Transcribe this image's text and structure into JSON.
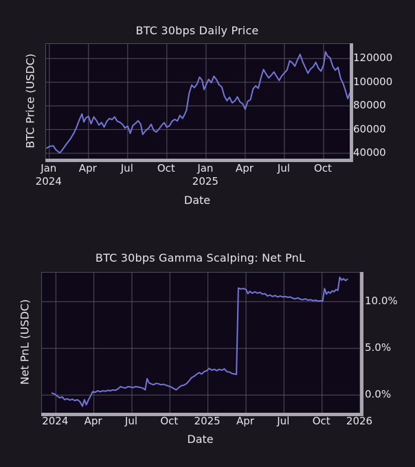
{
  "colors": {
    "page_background": "#1a171e",
    "plot_background": "#0e0818",
    "grid": "#55515e",
    "spine": "#a9a9b2",
    "line": "#7277d8",
    "text": "#e9e7ec"
  },
  "chart_data": [
    {
      "type": "line",
      "title": "BTC 30bps Daily Price",
      "xlabel": "Date",
      "ylabel": "BTC Price (USDC)",
      "x_unit": "months since 2024-01-01",
      "xlim": [
        -0.25,
        23.0
      ],
      "ylim": [
        35400,
        132300
      ],
      "grid": true,
      "legend": "none",
      "yticks": [
        {
          "value": 120000,
          "label": "120000"
        },
        {
          "value": 100000,
          "label": "100000"
        },
        {
          "value": 80000,
          "label": "80000"
        },
        {
          "value": 60000,
          "label": "60000"
        },
        {
          "value": 40000,
          "label": "40000"
        }
      ],
      "xticks": [
        {
          "pos": 0,
          "label": "Jan",
          "sublabel": "2024"
        },
        {
          "pos": 3,
          "label": "Apr"
        },
        {
          "pos": 6,
          "label": "Jul"
        },
        {
          "pos": 9,
          "label": "Oct"
        },
        {
          "pos": 12,
          "label": "Jan",
          "sublabel": "2025"
        },
        {
          "pos": 15,
          "label": "Apr"
        },
        {
          "pos": 18,
          "label": "Jul"
        },
        {
          "pos": 21,
          "label": "Oct"
        }
      ],
      "series": [
        {
          "name": "BTC price (USDC)",
          "points": [
            [
              -0.2,
              44300
            ],
            [
              0.0,
              45600
            ],
            [
              0.3,
              46300
            ],
            [
              0.5,
              42900
            ],
            [
              0.8,
              40300
            ],
            [
              1.0,
              42800
            ],
            [
              1.3,
              47600
            ],
            [
              1.6,
              51900
            ],
            [
              1.9,
              57400
            ],
            [
              2.1,
              62300
            ],
            [
              2.3,
              68200
            ],
            [
              2.5,
              73200
            ],
            [
              2.65,
              66400
            ],
            [
              2.8,
              69800
            ],
            [
              3.0,
              71200
            ],
            [
              3.2,
              64900
            ],
            [
              3.4,
              70600
            ],
            [
              3.6,
              67800
            ],
            [
              3.8,
              63700
            ],
            [
              4.0,
              65900
            ],
            [
              4.2,
              62100
            ],
            [
              4.4,
              66900
            ],
            [
              4.6,
              69300
            ],
            [
              4.8,
              68400
            ],
            [
              5.0,
              70700
            ],
            [
              5.2,
              67100
            ],
            [
              5.4,
              66100
            ],
            [
              5.6,
              64400
            ],
            [
              5.8,
              61200
            ],
            [
              6.0,
              62900
            ],
            [
              6.2,
              56800
            ],
            [
              6.4,
              63400
            ],
            [
              6.6,
              65200
            ],
            [
              6.8,
              67400
            ],
            [
              7.0,
              64600
            ],
            [
              7.15,
              55900
            ],
            [
              7.4,
              59300
            ],
            [
              7.6,
              61100
            ],
            [
              7.8,
              64400
            ],
            [
              8.0,
              59200
            ],
            [
              8.2,
              57900
            ],
            [
              8.4,
              60400
            ],
            [
              8.6,
              63500
            ],
            [
              8.8,
              65800
            ],
            [
              9.0,
              61900
            ],
            [
              9.2,
              63200
            ],
            [
              9.4,
              67000
            ],
            [
              9.6,
              68600
            ],
            [
              9.8,
              67200
            ],
            [
              10.0,
              71900
            ],
            [
              10.2,
              69400
            ],
            [
              10.35,
              72500
            ],
            [
              10.5,
              76300
            ],
            [
              10.7,
              90400
            ],
            [
              10.9,
              97600
            ],
            [
              11.1,
              95400
            ],
            [
              11.3,
              98200
            ],
            [
              11.5,
              104300
            ],
            [
              11.7,
              101600
            ],
            [
              11.85,
              93800
            ],
            [
              12.0,
              97700
            ],
            [
              12.2,
              102400
            ],
            [
              12.4,
              99600
            ],
            [
              12.6,
              105000
            ],
            [
              12.8,
              102100
            ],
            [
              13.0,
              97800
            ],
            [
              13.2,
              96100
            ],
            [
              13.4,
              88300
            ],
            [
              13.6,
              84400
            ],
            [
              13.8,
              87200
            ],
            [
              14.0,
              82600
            ],
            [
              14.2,
              84100
            ],
            [
              14.4,
              87600
            ],
            [
              14.6,
              83300
            ],
            [
              14.8,
              81900
            ],
            [
              15.0,
              77200
            ],
            [
              15.2,
              83900
            ],
            [
              15.4,
              85100
            ],
            [
              15.6,
              94300
            ],
            [
              15.8,
              96900
            ],
            [
              16.0,
              94800
            ],
            [
              16.2,
              103500
            ],
            [
              16.4,
              110700
            ],
            [
              16.6,
              106800
            ],
            [
              16.8,
              103700
            ],
            [
              17.0,
              105900
            ],
            [
              17.2,
              108700
            ],
            [
              17.4,
              104900
            ],
            [
              17.6,
              101500
            ],
            [
              17.8,
              105300
            ],
            [
              18.0,
              107800
            ],
            [
              18.2,
              110200
            ],
            [
              18.4,
              118100
            ],
            [
              18.6,
              116400
            ],
            [
              18.8,
              113500
            ],
            [
              19.0,
              118900
            ],
            [
              19.2,
              123500
            ],
            [
              19.4,
              117100
            ],
            [
              19.6,
              112300
            ],
            [
              19.8,
              107600
            ],
            [
              20.0,
              111200
            ],
            [
              20.2,
              112900
            ],
            [
              20.4,
              116800
            ],
            [
              20.6,
              111800
            ],
            [
              20.8,
              109300
            ],
            [
              21.0,
              114600
            ],
            [
              21.15,
              125700
            ],
            [
              21.3,
              122100
            ],
            [
              21.5,
              120600
            ],
            [
              21.7,
              113400
            ],
            [
              21.9,
              110100
            ],
            [
              22.1,
              112600
            ],
            [
              22.3,
              103300
            ],
            [
              22.5,
              98700
            ],
            [
              22.7,
              91900
            ],
            [
              22.85,
              86100
            ],
            [
              23.0,
              90600
            ]
          ]
        }
      ]
    },
    {
      "type": "line",
      "title": "BTC 30bps Gamma Scalping: Net PnL",
      "xlabel": "Date",
      "ylabel": "Net PnL (USDC)",
      "x_unit": "months since 2024-01-01",
      "xlim": [
        -1.1,
        24.0
      ],
      "ylim": [
        -1.9,
        13.1
      ],
      "grid": true,
      "legend": "none",
      "yticks": [
        {
          "value": 10,
          "label": "10.0%"
        },
        {
          "value": 5,
          "label": "5.0%"
        },
        {
          "value": 0,
          "label": "0.0%"
        }
      ],
      "xticks": [
        {
          "pos": 0,
          "label": "2024"
        },
        {
          "pos": 3,
          "label": "Apr"
        },
        {
          "pos": 6,
          "label": "Jul"
        },
        {
          "pos": 9,
          "label": "Oct"
        },
        {
          "pos": 12,
          "label": "2025"
        },
        {
          "pos": 15,
          "label": "Apr"
        },
        {
          "pos": 18,
          "label": "Jul"
        },
        {
          "pos": 21,
          "label": "Oct"
        },
        {
          "pos": 24,
          "label": "2026"
        }
      ],
      "series": [
        {
          "name": "Net PnL (%)",
          "points": [
            [
              -0.3,
              0.2
            ],
            [
              -0.1,
              0.1
            ],
            [
              0.1,
              -0.1
            ],
            [
              0.3,
              -0.3
            ],
            [
              0.5,
              -0.2
            ],
            [
              0.7,
              -0.5
            ],
            [
              0.9,
              -0.4
            ],
            [
              1.1,
              -0.55
            ],
            [
              1.3,
              -0.45
            ],
            [
              1.5,
              -0.6
            ],
            [
              1.7,
              -0.5
            ],
            [
              1.9,
              -0.7
            ],
            [
              2.1,
              -1.2
            ],
            [
              2.25,
              -0.5
            ],
            [
              2.4,
              -1.05
            ],
            [
              2.55,
              -0.6
            ],
            [
              2.7,
              -0.2
            ],
            [
              2.9,
              0.35
            ],
            [
              3.1,
              0.3
            ],
            [
              3.3,
              0.45
            ],
            [
              3.5,
              0.35
            ],
            [
              3.7,
              0.45
            ],
            [
              3.9,
              0.4
            ],
            [
              4.1,
              0.5
            ],
            [
              4.3,
              0.45
            ],
            [
              4.5,
              0.55
            ],
            [
              4.7,
              0.5
            ],
            [
              4.9,
              0.65
            ],
            [
              5.1,
              0.9
            ],
            [
              5.3,
              0.8
            ],
            [
              5.5,
              0.75
            ],
            [
              5.7,
              0.9
            ],
            [
              5.9,
              0.85
            ],
            [
              6.1,
              0.8
            ],
            [
              6.3,
              0.9
            ],
            [
              6.5,
              0.85
            ],
            [
              6.7,
              0.8
            ],
            [
              6.9,
              0.7
            ],
            [
              7.05,
              0.55
            ],
            [
              7.2,
              1.75
            ],
            [
              7.35,
              1.3
            ],
            [
              7.5,
              1.2
            ],
            [
              7.7,
              1.1
            ],
            [
              7.9,
              1.25
            ],
            [
              8.1,
              1.2
            ],
            [
              8.3,
              1.1
            ],
            [
              8.5,
              1.15
            ],
            [
              8.7,
              1.05
            ],
            [
              8.9,
              0.95
            ],
            [
              9.1,
              0.85
            ],
            [
              9.3,
              0.7
            ],
            [
              9.5,
              0.55
            ],
            [
              9.7,
              0.8
            ],
            [
              9.9,
              1.0
            ],
            [
              10.1,
              1.05
            ],
            [
              10.3,
              1.2
            ],
            [
              10.5,
              1.5
            ],
            [
              10.7,
              1.85
            ],
            [
              10.9,
              2.0
            ],
            [
              11.1,
              2.2
            ],
            [
              11.3,
              2.4
            ],
            [
              11.5,
              2.25
            ],
            [
              11.7,
              2.5
            ],
            [
              11.9,
              2.6
            ],
            [
              12.1,
              2.85
            ],
            [
              12.3,
              2.65
            ],
            [
              12.5,
              2.75
            ],
            [
              12.7,
              2.6
            ],
            [
              12.9,
              2.75
            ],
            [
              13.1,
              2.65
            ],
            [
              13.3,
              2.8
            ],
            [
              13.5,
              2.5
            ],
            [
              13.7,
              2.45
            ],
            [
              13.9,
              2.3
            ],
            [
              14.1,
              2.25
            ],
            [
              14.25,
              2.2
            ],
            [
              14.4,
              11.45
            ],
            [
              14.6,
              11.35
            ],
            [
              14.8,
              11.4
            ],
            [
              15.0,
              11.3
            ],
            [
              15.15,
              10.85
            ],
            [
              15.3,
              11.1
            ],
            [
              15.5,
              10.9
            ],
            [
              15.7,
              11.05
            ],
            [
              15.9,
              10.9
            ],
            [
              16.1,
              11.0
            ],
            [
              16.3,
              10.8
            ],
            [
              16.5,
              10.85
            ],
            [
              16.7,
              10.6
            ],
            [
              16.9,
              10.7
            ],
            [
              17.1,
              10.55
            ],
            [
              17.3,
              10.65
            ],
            [
              17.5,
              10.5
            ],
            [
              17.7,
              10.6
            ],
            [
              17.9,
              10.5
            ],
            [
              18.1,
              10.55
            ],
            [
              18.3,
              10.45
            ],
            [
              18.5,
              10.5
            ],
            [
              18.7,
              10.35
            ],
            [
              18.9,
              10.3
            ],
            [
              19.1,
              10.4
            ],
            [
              19.3,
              10.25
            ],
            [
              19.5,
              10.2
            ],
            [
              19.7,
              10.3
            ],
            [
              19.9,
              10.15
            ],
            [
              20.1,
              10.2
            ],
            [
              20.3,
              10.1
            ],
            [
              20.5,
              10.15
            ],
            [
              20.7,
              10.05
            ],
            [
              20.9,
              10.1
            ],
            [
              21.05,
              10.05
            ],
            [
              21.2,
              11.4
            ],
            [
              21.35,
              10.8
            ],
            [
              21.5,
              11.05
            ],
            [
              21.65,
              10.9
            ],
            [
              21.8,
              11.15
            ],
            [
              21.95,
              11.05
            ],
            [
              22.1,
              11.3
            ],
            [
              22.25,
              11.2
            ],
            [
              22.4,
              12.6
            ],
            [
              22.55,
              12.3
            ],
            [
              22.7,
              12.45
            ],
            [
              22.85,
              12.25
            ],
            [
              23.0,
              12.4
            ]
          ]
        }
      ]
    }
  ]
}
